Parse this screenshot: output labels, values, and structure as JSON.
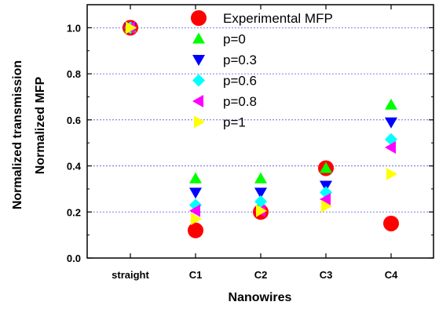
{
  "chart_data": {
    "type": "scatter",
    "title": "",
    "xlabel": "Nanowires",
    "ylabel": [
      "Normalized transmission",
      "Normalized MFP"
    ],
    "categories": [
      "straight",
      "C1",
      "C2",
      "C3",
      "C4"
    ],
    "ylim": [
      0.0,
      1.1
    ],
    "yticks": [
      "0.0",
      "0.2",
      "0.4",
      "0.6",
      "0.8",
      "1.0"
    ],
    "grid": "horizontal dotted",
    "legend_position": "top-center",
    "series": [
      {
        "name": "Experimental MFP",
        "marker": "circle",
        "color": "#ff0000",
        "values": [
          1.0,
          0.12,
          0.2,
          0.39,
          0.15
        ]
      },
      {
        "name": "p=0",
        "marker": "triangle-up",
        "color": "#00ff00",
        "values": [
          1.0,
          0.345,
          0.345,
          0.39,
          0.665
        ]
      },
      {
        "name": "p=0.3",
        "marker": "triangle-down",
        "color": "#0000ff",
        "values": [
          1.0,
          0.285,
          0.285,
          0.315,
          0.59
        ]
      },
      {
        "name": "p=0.6",
        "marker": "diamond",
        "color": "#00ffff",
        "values": [
          1.0,
          0.23,
          0.245,
          0.285,
          0.515
        ]
      },
      {
        "name": "p=0.8",
        "marker": "triangle-left",
        "color": "#ff00ff",
        "values": [
          1.0,
          0.205,
          0.205,
          0.255,
          0.48
        ]
      },
      {
        "name": "p=1",
        "marker": "triangle-right",
        "color": "#ffff00",
        "values": [
          1.0,
          0.17,
          0.205,
          0.225,
          0.365
        ]
      }
    ]
  }
}
